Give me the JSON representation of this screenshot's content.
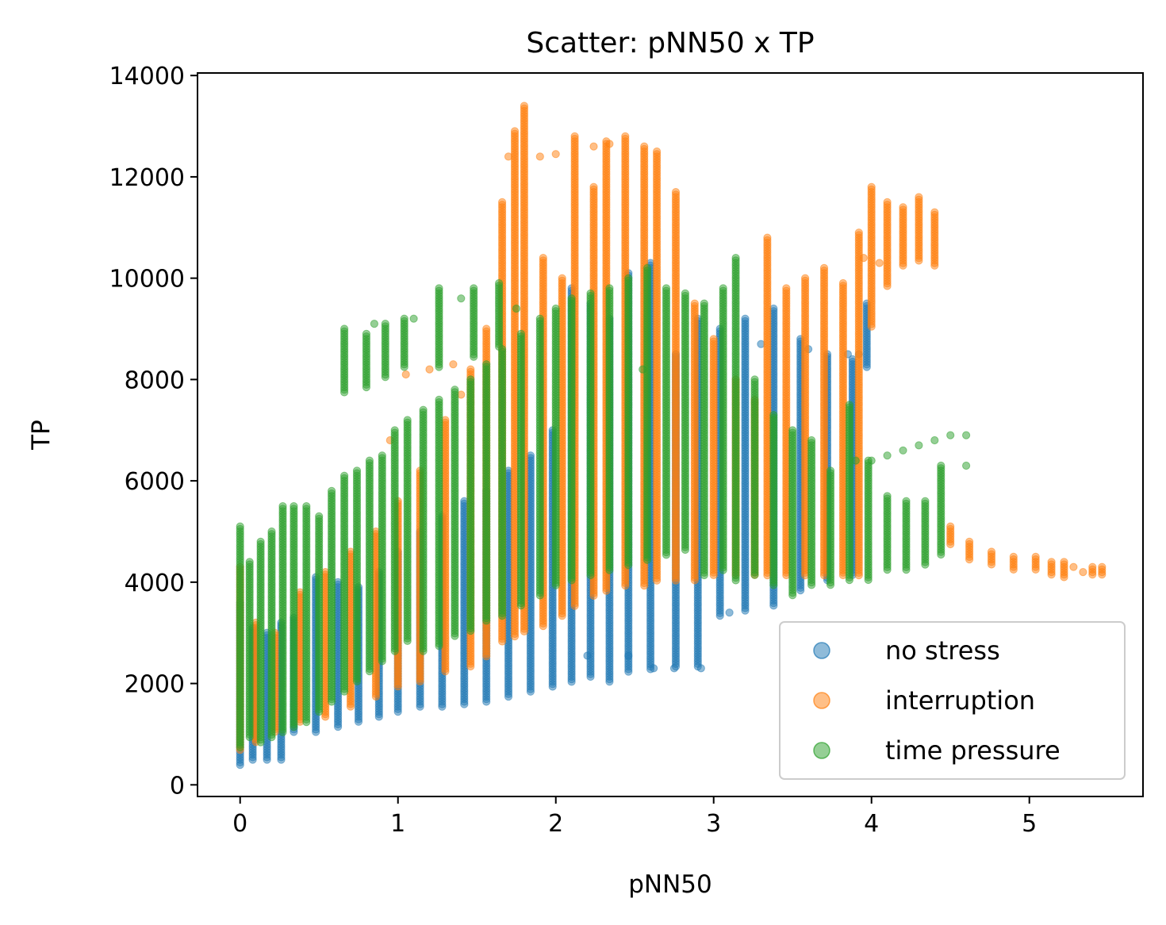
{
  "chart_data": {
    "type": "scatter",
    "title": "Scatter: pNN50 x TP",
    "xlabel": "pNN50",
    "ylabel": "TP",
    "xlim": [
      -0.27,
      5.72
    ],
    "ylim": [
      -230,
      14050
    ],
    "xticks": [
      0,
      1,
      2,
      3,
      4,
      5
    ],
    "yticks": [
      0,
      2000,
      4000,
      6000,
      8000,
      10000,
      12000,
      14000
    ],
    "xtick_labels": [
      "0",
      "1",
      "2",
      "3",
      "4",
      "5"
    ],
    "ytick_labels": [
      "0",
      "2000",
      "4000",
      "6000",
      "8000",
      "10000",
      "12000",
      "14000"
    ],
    "grid": false,
    "legend_position": "lower-right",
    "series": [
      {
        "name": "no stress",
        "color": "#1f77b4",
        "columns": [
          [
            0.0,
            380,
            3600
          ],
          [
            0.08,
            480,
            3100
          ],
          [
            0.17,
            470,
            3000
          ],
          [
            0.26,
            480,
            3200
          ],
          [
            0.34,
            1000,
            3300
          ],
          [
            0.48,
            1000,
            4100
          ],
          [
            0.62,
            1100,
            4000
          ],
          [
            0.75,
            1200,
            3900
          ],
          [
            0.88,
            1300,
            4200
          ],
          [
            1.0,
            1400,
            4600
          ],
          [
            1.14,
            1500,
            5000
          ],
          [
            1.28,
            1500,
            5300
          ],
          [
            1.42,
            1550,
            5600
          ],
          [
            1.56,
            1600,
            5800
          ],
          [
            1.7,
            1700,
            6200
          ],
          [
            1.84,
            1800,
            6500
          ],
          [
            1.98,
            1900,
            7000
          ],
          [
            2.1,
            2000,
            9800
          ],
          [
            2.22,
            2100,
            9500
          ],
          [
            2.34,
            2000,
            9200
          ],
          [
            2.46,
            2200,
            10100
          ],
          [
            2.6,
            2250,
            10300
          ],
          [
            2.76,
            2300,
            8500
          ],
          [
            2.9,
            2300,
            9200
          ],
          [
            3.04,
            3300,
            9000
          ],
          [
            3.2,
            3400,
            9200
          ],
          [
            3.38,
            3500,
            9400
          ],
          [
            3.55,
            3800,
            8800
          ],
          [
            3.72,
            4000,
            8500
          ],
          [
            3.88,
            4100,
            8400
          ],
          [
            3.97,
            8200,
            9500
          ]
        ],
        "sparse_points": [
          [
            2.2,
            2550
          ],
          [
            2.46,
            2550
          ],
          [
            2.62,
            2300
          ],
          [
            2.75,
            2300
          ],
          [
            2.92,
            2300
          ],
          [
            3.1,
            3400
          ],
          [
            3.3,
            8700
          ],
          [
            3.6,
            8600
          ],
          [
            3.85,
            8500
          ],
          [
            3.92,
            8500
          ]
        ]
      },
      {
        "name": "interruption",
        "color": "#ff7f0e",
        "columns": [
          [
            0.0,
            650,
            4300
          ],
          [
            0.1,
            800,
            3200
          ],
          [
            0.22,
            1000,
            3000
          ],
          [
            0.38,
            1200,
            3800
          ],
          [
            0.54,
            1300,
            4200
          ],
          [
            0.7,
            1500,
            4600
          ],
          [
            0.86,
            1700,
            5000
          ],
          [
            1.0,
            1900,
            5600
          ],
          [
            1.14,
            2000,
            6200
          ],
          [
            1.3,
            2200,
            7200
          ],
          [
            1.46,
            2300,
            8200
          ],
          [
            1.56,
            2500,
            9000
          ],
          [
            1.66,
            2800,
            11500
          ],
          [
            1.74,
            2900,
            12900
          ],
          [
            1.8,
            3000,
            13400
          ],
          [
            1.92,
            3100,
            10400
          ],
          [
            2.04,
            3300,
            10000
          ],
          [
            2.12,
            3500,
            12800
          ],
          [
            2.24,
            3700,
            11800
          ],
          [
            2.32,
            3800,
            12700
          ],
          [
            2.44,
            3900,
            12800
          ],
          [
            2.56,
            3900,
            12600
          ],
          [
            2.64,
            4000,
            12500
          ],
          [
            2.76,
            4000,
            11700
          ],
          [
            2.88,
            4000,
            9500
          ],
          [
            3.0,
            4100,
            8800
          ],
          [
            3.14,
            4100,
            8000
          ],
          [
            3.26,
            4100,
            7600
          ],
          [
            3.34,
            4100,
            10800
          ],
          [
            3.46,
            4100,
            9800
          ],
          [
            3.58,
            4100,
            10000
          ],
          [
            3.7,
            4100,
            10200
          ],
          [
            3.82,
            4100,
            9900
          ],
          [
            3.92,
            4100,
            10900
          ],
          [
            4.0,
            9000,
            11800
          ],
          [
            4.1,
            9800,
            11500
          ],
          [
            4.2,
            10200,
            11400
          ],
          [
            4.3,
            10300,
            11600
          ],
          [
            4.4,
            10200,
            11300
          ],
          [
            4.5,
            4700,
            5100
          ],
          [
            4.62,
            4400,
            4800
          ],
          [
            4.76,
            4300,
            4600
          ],
          [
            4.9,
            4200,
            4500
          ],
          [
            5.04,
            4200,
            4500
          ],
          [
            5.14,
            4100,
            4400
          ],
          [
            5.22,
            4050,
            4400
          ],
          [
            5.4,
            4100,
            4300
          ],
          [
            5.46,
            4100,
            4300
          ]
        ],
        "sparse_points": [
          [
            1.7,
            12400
          ],
          [
            1.9,
            12400
          ],
          [
            2.0,
            12450
          ],
          [
            2.24,
            12600
          ],
          [
            2.34,
            12650
          ],
          [
            0.95,
            6800
          ],
          [
            1.05,
            8100
          ],
          [
            1.2,
            8200
          ],
          [
            1.35,
            8300
          ],
          [
            1.4,
            7700
          ],
          [
            3.95,
            10400
          ],
          [
            4.05,
            10300
          ],
          [
            5.28,
            4300
          ],
          [
            5.34,
            4200
          ]
        ]
      },
      {
        "name": "time pressure",
        "color": "#2ca02c",
        "columns": [
          [
            0.0,
            700,
            5100
          ],
          [
            0.06,
            900,
            4400
          ],
          [
            0.13,
            800,
            4800
          ],
          [
            0.2,
            900,
            5000
          ],
          [
            0.27,
            1000,
            5500
          ],
          [
            0.34,
            1100,
            5500
          ],
          [
            0.42,
            1200,
            5500
          ],
          [
            0.5,
            1400,
            5300
          ],
          [
            0.58,
            1600,
            5800
          ],
          [
            0.66,
            1800,
            6100
          ],
          [
            0.74,
            2000,
            6200
          ],
          [
            0.82,
            2200,
            6400
          ],
          [
            0.9,
            2400,
            6500
          ],
          [
            0.98,
            2600,
            7000
          ],
          [
            1.06,
            2800,
            7200
          ],
          [
            1.16,
            2600,
            7400
          ],
          [
            1.26,
            2700,
            7600
          ],
          [
            1.36,
            2900,
            7800
          ],
          [
            1.46,
            3000,
            8000
          ],
          [
            1.56,
            3200,
            8300
          ],
          [
            1.66,
            3300,
            8600
          ],
          [
            1.78,
            3500,
            8900
          ],
          [
            1.9,
            3700,
            9200
          ],
          [
            2.0,
            3900,
            9400
          ],
          [
            2.1,
            4000,
            9600
          ],
          [
            2.22,
            4100,
            9700
          ],
          [
            2.34,
            4200,
            9800
          ],
          [
            2.46,
            4300,
            10000
          ],
          [
            2.58,
            4400,
            10200
          ],
          [
            2.7,
            4500,
            9800
          ],
          [
            2.82,
            4600,
            9700
          ],
          [
            2.94,
            4100,
            9500
          ],
          [
            3.06,
            4200,
            9800
          ],
          [
            3.14,
            4000,
            10400
          ],
          [
            3.26,
            4100,
            8000
          ],
          [
            3.38,
            3900,
            7300
          ],
          [
            3.5,
            3700,
            7000
          ],
          [
            3.62,
            3900,
            6800
          ],
          [
            3.74,
            3900,
            6200
          ],
          [
            3.86,
            4000,
            7500
          ],
          [
            3.98,
            4000,
            6400
          ],
          [
            4.1,
            4200,
            5700
          ],
          [
            4.22,
            4200,
            5600
          ],
          [
            4.34,
            4300,
            5600
          ],
          [
            4.44,
            4500,
            6300
          ],
          [
            0.66,
            7700,
            9000
          ],
          [
            0.8,
            7800,
            8900
          ],
          [
            0.92,
            8000,
            9100
          ],
          [
            1.04,
            8200,
            9200
          ],
          [
            1.26,
            8200,
            9800
          ],
          [
            1.48,
            8400,
            9800
          ],
          [
            1.64,
            8600,
            9900
          ]
        ],
        "sparse_points": [
          [
            0.85,
            9100
          ],
          [
            1.1,
            9200
          ],
          [
            1.4,
            9600
          ],
          [
            1.75,
            9400
          ],
          [
            2.55,
            8200
          ],
          [
            4.6,
            6900
          ],
          [
            4.5,
            6900
          ],
          [
            4.4,
            6800
          ],
          [
            4.3,
            6700
          ],
          [
            4.2,
            6600
          ],
          [
            4.1,
            6500
          ],
          [
            4.0,
            6400
          ],
          [
            3.9,
            6400
          ],
          [
            4.6,
            6300
          ]
        ]
      }
    ]
  }
}
